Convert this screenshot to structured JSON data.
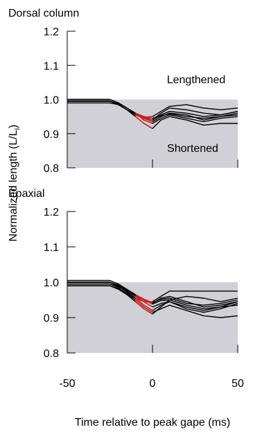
{
  "colors": {
    "shade": "#d0d0d6",
    "trace": "#000000",
    "highlight": "#e0201e",
    "axis": "#000000"
  },
  "figure": {
    "ylabel_main": "Normalized length  (L/L",
    "ylabel_sub": "i",
    "ylabel_close": ")",
    "xlabel": "Time relative to peak gape (ms)"
  },
  "chart_data": [
    {
      "type": "line",
      "title": "Dorsal column",
      "xlim": [
        -50,
        50
      ],
      "ylim": [
        0.8,
        1.2
      ],
      "xticks": [
        "-50",
        "0",
        "50"
      ],
      "yticks": [
        "0.8",
        "0.9",
        "1.0",
        "1.1",
        "1.2"
      ],
      "shaded_region": {
        "y_max": 1.0,
        "label_above": "Lengthened",
        "label_below": "Shortened"
      },
      "highlight_x_range": [
        -10,
        0
      ],
      "x": [
        -50,
        -25,
        -20,
        -15,
        -10,
        -5,
        0,
        5,
        10,
        20,
        30,
        40,
        50
      ],
      "series": [
        {
          "values": [
            1.0,
            1.0,
            0.99,
            0.975,
            0.96,
            0.945,
            0.935,
            0.95,
            0.96,
            0.955,
            0.94,
            0.95,
            0.96
          ]
        },
        {
          "values": [
            1.0,
            1.0,
            0.99,
            0.975,
            0.96,
            0.948,
            0.94,
            0.955,
            0.965,
            0.96,
            0.95,
            0.955,
            0.965
          ]
        },
        {
          "values": [
            1.0,
            1.0,
            0.99,
            0.975,
            0.96,
            0.94,
            0.93,
            0.945,
            0.955,
            0.945,
            0.935,
            0.945,
            0.95
          ]
        },
        {
          "values": [
            0.995,
            0.995,
            0.985,
            0.97,
            0.95,
            0.93,
            0.915,
            0.94,
            0.95,
            0.94,
            0.925,
            0.93,
            0.93
          ]
        },
        {
          "values": [
            0.995,
            0.995,
            0.985,
            0.97,
            0.955,
            0.945,
            0.94,
            0.96,
            0.975,
            0.97,
            0.96,
            0.955,
            0.965
          ]
        },
        {
          "values": [
            0.99,
            0.99,
            0.985,
            0.97,
            0.958,
            0.948,
            0.95,
            0.965,
            0.98,
            0.985,
            0.975,
            0.97,
            0.975
          ]
        },
        {
          "values": [
            0.995,
            0.995,
            0.988,
            0.975,
            0.96,
            0.95,
            0.945,
            0.952,
            0.958,
            0.95,
            0.945,
            0.95,
            0.955
          ]
        }
      ]
    },
    {
      "type": "line",
      "title": "Epaxial",
      "xlim": [
        -50,
        50
      ],
      "ylim": [
        0.8,
        1.2
      ],
      "xticks": [
        "-50",
        "0",
        "50"
      ],
      "yticks": [
        "0.8",
        "0.9",
        "1.0",
        "1.1",
        "1.2"
      ],
      "shaded_region": {
        "y_max": 1.0
      },
      "highlight_x_range": [
        -10,
        0
      ],
      "x": [
        -50,
        -25,
        -20,
        -15,
        -10,
        -5,
        0,
        5,
        10,
        20,
        30,
        40,
        50
      ],
      "series": [
        {
          "values": [
            1.005,
            1.005,
            0.995,
            0.98,
            0.965,
            0.95,
            0.94,
            0.955,
            0.96,
            0.945,
            0.93,
            0.935,
            0.945
          ]
        },
        {
          "values": [
            1.0,
            1.0,
            0.99,
            0.975,
            0.96,
            0.945,
            0.93,
            0.94,
            0.945,
            0.925,
            0.915,
            0.925,
            0.94
          ]
        },
        {
          "values": [
            1.0,
            1.0,
            0.99,
            0.972,
            0.955,
            0.935,
            0.92,
            0.935,
            0.945,
            0.93,
            0.92,
            0.93,
            0.945
          ]
        },
        {
          "values": [
            0.995,
            0.995,
            0.985,
            0.968,
            0.95,
            0.93,
            0.915,
            0.925,
            0.935,
            0.92,
            0.905,
            0.9,
            0.905
          ]
        },
        {
          "values": [
            0.99,
            0.99,
            0.98,
            0.965,
            0.945,
            0.925,
            0.91,
            0.93,
            0.95,
            0.96,
            0.955,
            0.945,
            0.955
          ]
        },
        {
          "values": [
            0.99,
            0.99,
            0.982,
            0.968,
            0.955,
            0.945,
            0.945,
            0.96,
            0.975,
            0.975,
            0.975,
            0.975,
            0.975
          ]
        },
        {
          "values": [
            0.995,
            0.995,
            0.988,
            0.975,
            0.962,
            0.95,
            0.938,
            0.948,
            0.95,
            0.935,
            0.925,
            0.93,
            0.935
          ]
        },
        {
          "values": [
            1.0,
            1.0,
            0.992,
            0.978,
            0.965,
            0.952,
            0.942,
            0.952,
            0.955,
            0.94,
            0.935,
            0.94,
            0.95
          ]
        }
      ]
    }
  ]
}
